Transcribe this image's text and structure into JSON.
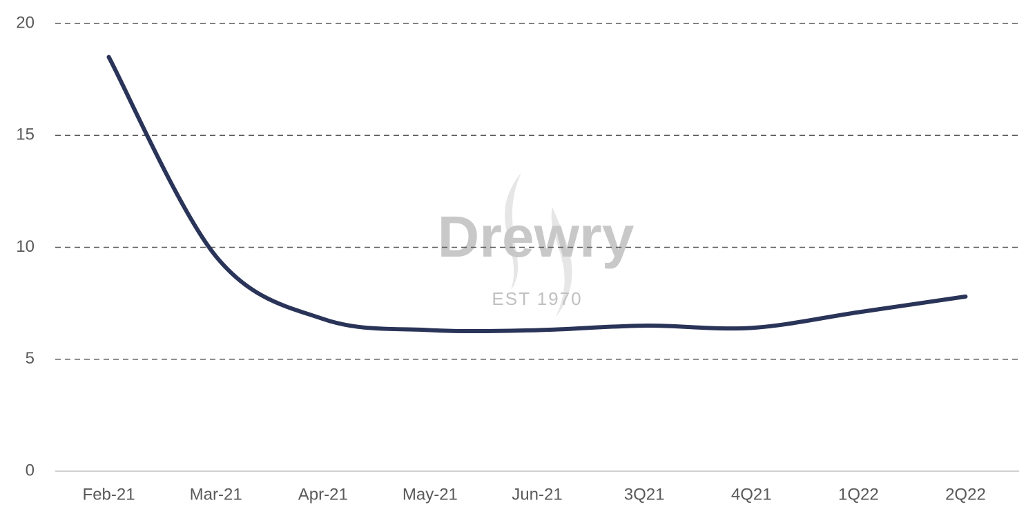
{
  "chart_data": {
    "type": "line",
    "categories": [
      "Feb-21",
      "Mar-21",
      "Apr-21",
      "May-21",
      "Jun-21",
      "3Q21",
      "4Q21",
      "1Q22",
      "2Q22"
    ],
    "values": [
      18.5,
      9.6,
      6.8,
      6.3,
      6.3,
      6.5,
      6.4,
      7.1,
      7.8
    ],
    "color": "#2a3459",
    "smooth": true,
    "ylim": [
      0,
      20
    ],
    "yticks": [
      0,
      5,
      10,
      15,
      20
    ],
    "grid": true,
    "watermark": {
      "title": "Drewry",
      "subtitle": "EST 1970"
    }
  }
}
